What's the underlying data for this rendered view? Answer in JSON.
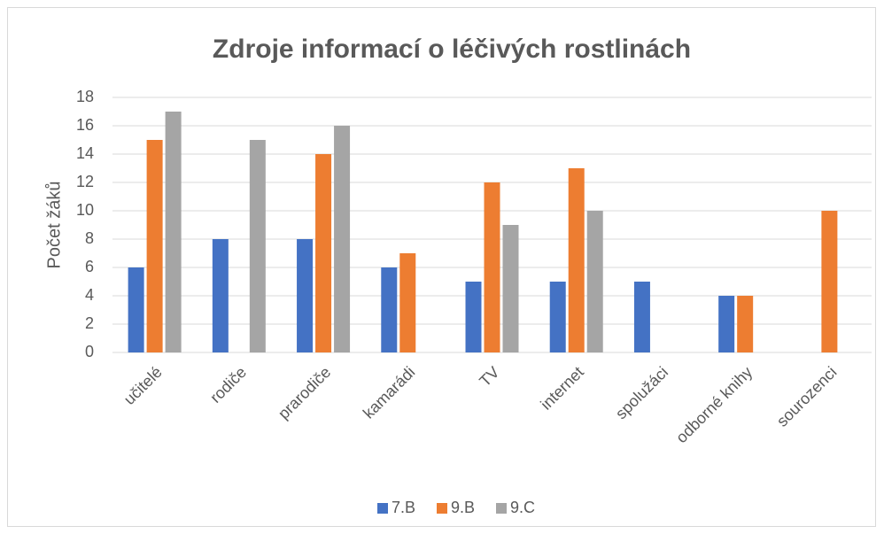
{
  "chart_data": {
    "type": "bar",
    "title": "Zdroje informací o léčivých rostlinách",
    "y_label": "Počet žáků",
    "categories": [
      "učitelé",
      "rodiče",
      "prarodiče",
      "kamarádi",
      "TV",
      "internet",
      "spolužáci",
      "odborné knihy",
      "sourozenci"
    ],
    "series": [
      {
        "name": "7.B",
        "color": "#4472c4",
        "values": [
          6,
          8,
          8,
          6,
          5,
          5,
          5,
          4,
          0
        ]
      },
      {
        "name": "9.B",
        "color": "#ed7d31",
        "values": [
          15,
          0,
          14,
          7,
          12,
          13,
          0,
          4,
          10
        ]
      },
      {
        "name": "9.C",
        "color": "#a5a5a5",
        "values": [
          17,
          15,
          16,
          0,
          9,
          10,
          0,
          0,
          0
        ]
      }
    ],
    "ylim": [
      0,
      18
    ],
    "yticks": [
      0,
      2,
      4,
      6,
      8,
      10,
      12,
      14,
      16,
      18
    ],
    "grid": true,
    "legend": "bottom"
  }
}
